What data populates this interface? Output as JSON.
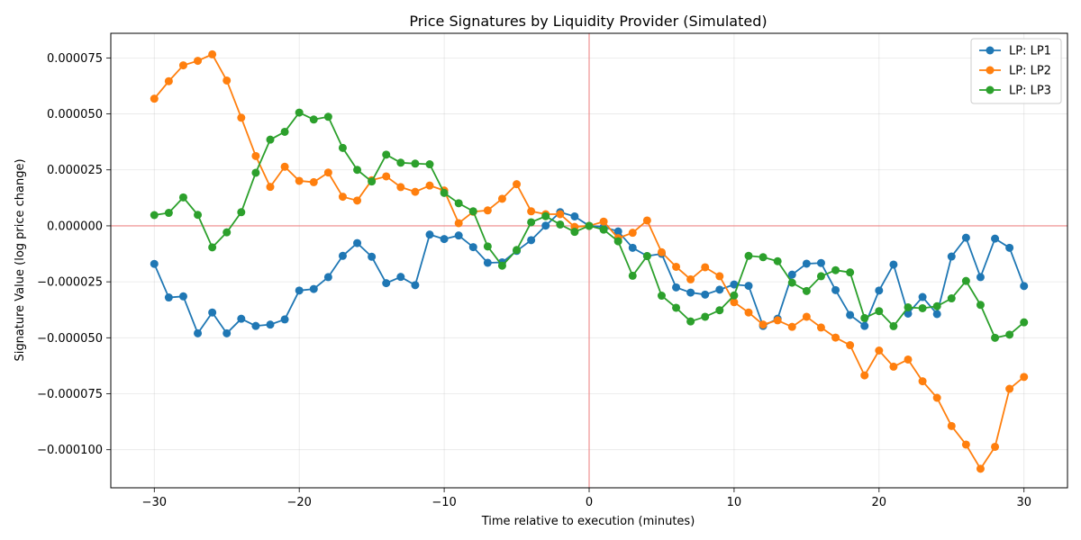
{
  "chart_data": {
    "type": "line",
    "title": "Price Signatures by Liquidity Provider (Simulated)",
    "xlabel": "Time relative to execution (minutes)",
    "ylabel": "Signature Value (log price change)",
    "xlim": [
      -33,
      33
    ],
    "ylim": [
      -0.000117,
      8.6e-05
    ],
    "xticks": [
      -30,
      -20,
      -10,
      0,
      10,
      20,
      30
    ],
    "xtick_labels": [
      "−30",
      "−20",
      "−10",
      "0",
      "10",
      "20",
      "30"
    ],
    "yticks": [
      7.5e-05,
      5e-05,
      2.5e-05,
      0,
      -2.5e-05,
      -5e-05,
      -7.5e-05,
      -0.0001
    ],
    "ytick_labels": [
      "0.000075",
      "0.000050",
      "0.000025",
      "0.000000",
      "−0.000025",
      "−0.000050",
      "−0.000075",
      "−0.000100"
    ],
    "grid": true,
    "legend_position": "top-right",
    "reference_lines": {
      "x": 0,
      "y": 0,
      "color": "#f08080"
    },
    "x": [
      -30,
      -29,
      -28,
      -27,
      -26,
      -25,
      -24,
      -23,
      -22,
      -21,
      -20,
      -19,
      -18,
      -17,
      -16,
      -15,
      -14,
      -13,
      -12,
      -11,
      -10,
      -9,
      -8,
      -7,
      -6,
      -5,
      -4,
      -3,
      -2,
      -1,
      0,
      1,
      2,
      3,
      4,
      5,
      6,
      7,
      8,
      9,
      10,
      11,
      12,
      13,
      14,
      15,
      16,
      17,
      18,
      19,
      20,
      21,
      22,
      23,
      24,
      25,
      26,
      27,
      28,
      29,
      30
    ],
    "series": [
      {
        "name": "LP: LP1",
        "color": "#1f77b4",
        "values": [
          -1.7e-05,
          -3.2e-05,
          -3.15e-05,
          -4.8e-05,
          -3.87e-05,
          -4.8e-05,
          -4.15e-05,
          -4.47e-05,
          -4.41e-05,
          -4.18e-05,
          -2.89e-05,
          -2.82e-05,
          -2.29e-05,
          -1.34e-05,
          -7.7e-06,
          -1.38e-05,
          -2.56e-05,
          -2.28e-05,
          -2.65e-05,
          -3.9e-06,
          -5.9e-06,
          -4.3e-06,
          -9.5e-06,
          -1.65e-05,
          -1.63e-05,
          -1.12e-05,
          -6.4e-06,
          1e-07,
          6.1e-06,
          4.2e-06,
          0.0,
          -5e-07,
          -2.5e-06,
          -9.8e-06,
          -1.35e-05,
          -1.25e-05,
          -2.75e-05,
          -2.98e-05,
          -3.07e-05,
          -2.85e-05,
          -2.62e-05,
          -2.68e-05,
          -4.47e-05,
          -4.15e-05,
          -2.18e-05,
          -1.69e-05,
          -1.66e-05,
          -2.87e-05,
          -3.98e-05,
          -4.47e-05,
          -2.89e-05,
          -1.73e-05,
          -3.92e-05,
          -3.18e-05,
          -3.94e-05,
          -1.37e-05,
          -5.3e-06,
          -2.29e-05,
          -5.7e-06,
          -9.8e-06,
          -2.69e-05
        ]
      },
      {
        "name": "LP: LP2",
        "color": "#ff7f0e",
        "values": [
          5.68e-05,
          6.46e-05,
          7.17e-05,
          7.37e-05,
          7.66e-05,
          6.49e-05,
          4.83e-05,
          3.12e-05,
          1.74e-05,
          2.64e-05,
          2.01e-05,
          1.95e-05,
          2.38e-05,
          1.3e-05,
          1.13e-05,
          2.04e-05,
          2.21e-05,
          1.73e-05,
          1.52e-05,
          1.8e-05,
          1.58e-05,
          1.2e-06,
          6.3e-06,
          6.9e-06,
          1.21e-05,
          1.86e-05,
          6.5e-06,
          5.2e-06,
          5.2e-06,
          -5e-07,
          0.0,
          1.9e-06,
          -5.5e-06,
          -3.1e-06,
          2.4e-06,
          -1.18e-05,
          -1.83e-05,
          -2.39e-05,
          -1.85e-05,
          -2.25e-05,
          -3.41e-05,
          -3.87e-05,
          -4.41e-05,
          -4.22e-05,
          -4.51e-05,
          -4.06e-05,
          -4.54e-05,
          -4.99e-05,
          -5.33e-05,
          -6.68e-05,
          -5.57e-05,
          -6.29e-05,
          -5.97e-05,
          -6.94e-05,
          -7.68e-05,
          -8.94e-05,
          -9.77e-05,
          -0.0001085,
          -9.87e-05,
          -7.28e-05,
          -6.75e-05
        ]
      },
      {
        "name": "LP: LP3",
        "color": "#2ca02c",
        "values": [
          4.8e-06,
          5.8e-06,
          1.27e-05,
          4.9e-06,
          -9.6e-06,
          -2.9e-06,
          6.1e-06,
          2.37e-05,
          3.85e-05,
          4.2e-05,
          5.06e-05,
          4.75e-05,
          4.87e-05,
          3.48e-05,
          2.5e-05,
          1.98e-05,
          3.18e-05,
          2.82e-05,
          2.78e-05,
          2.75e-05,
          1.47e-05,
          1.01e-05,
          6.5e-06,
          -9.2e-06,
          -1.78e-05,
          -1.08e-05,
          1.6e-06,
          4.3e-06,
          6e-07,
          -2.7e-06,
          0.0,
          -1.7e-06,
          -6.9e-06,
          -2.23e-05,
          -1.35e-05,
          -3.12e-05,
          -3.66e-05,
          -4.27e-05,
          -4.06e-05,
          -3.77e-05,
          -3.11e-05,
          -1.34e-05,
          -1.4e-05,
          -1.58e-05,
          -2.54e-05,
          -2.91e-05,
          -2.25e-05,
          -1.98e-05,
          -2.08e-05,
          -4.12e-05,
          -3.81e-05,
          -4.48e-05,
          -3.64e-05,
          -3.68e-05,
          -3.59e-05,
          -3.24e-05,
          -2.46e-05,
          -3.53e-05,
          -5e-05,
          -4.86e-05,
          -4.31e-05
        ]
      }
    ]
  }
}
